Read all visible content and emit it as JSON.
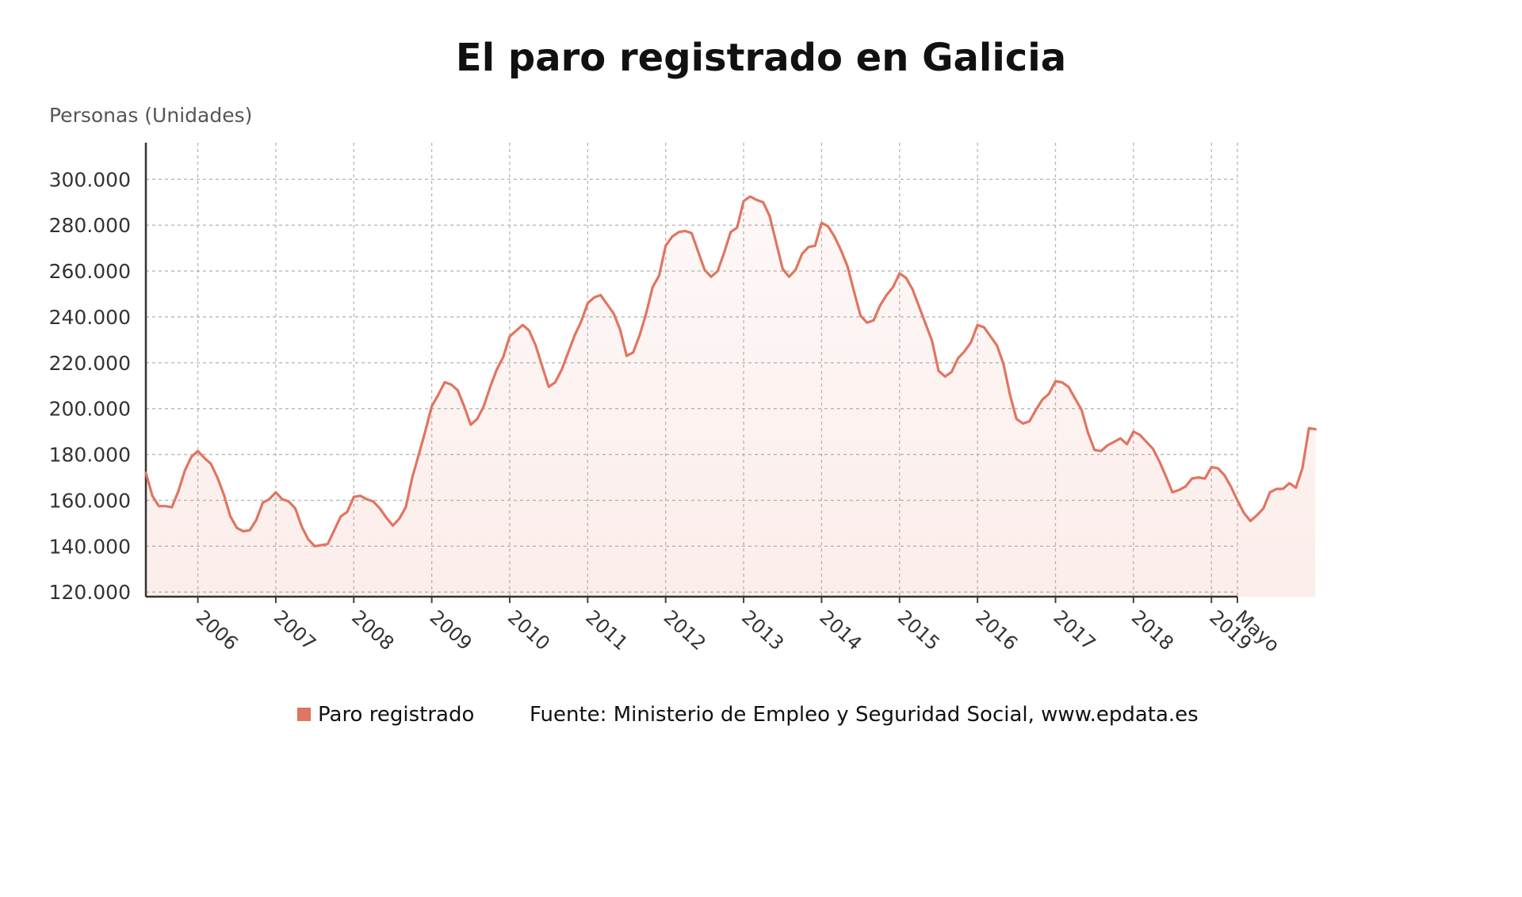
{
  "chart_data": {
    "type": "area",
    "title": "El paro registrado en Galicia",
    "ylabel": "Personas (Unidades)",
    "ylim": [
      118000,
      316000
    ],
    "yticks": [
      120000,
      140000,
      160000,
      180000,
      200000,
      220000,
      240000,
      260000,
      280000,
      300000
    ],
    "ytick_labels": [
      "120.000",
      "140.000",
      "160.000",
      "180.000",
      "200.000",
      "220.000",
      "240.000",
      "260.000",
      "280.000",
      "300.000"
    ],
    "x_start": "2005-05",
    "x_end": "2019-05",
    "xticks": [
      "2006-01",
      "2007-01",
      "2008-01",
      "2009-01",
      "2010-01",
      "2011-01",
      "2012-01",
      "2013-01",
      "2014-01",
      "2015-01",
      "2016-01",
      "2017-01",
      "2018-01",
      "2019-01",
      "2019-05"
    ],
    "xtick_labels": [
      "2006",
      "2007",
      "2008",
      "2009",
      "2010",
      "2011",
      "2012",
      "2013",
      "2014",
      "2015",
      "2016",
      "2017",
      "2018",
      "2019",
      "Mayo"
    ],
    "grid": true,
    "series": [
      {
        "name": "Paro registrado",
        "color": "#e07560",
        "start": "2005-05",
        "frequency": "monthly",
        "values": [
          172000,
          162000,
          157500,
          157500,
          157000,
          164000,
          173000,
          179000,
          181500,
          178500,
          176000,
          170000,
          162500,
          153000,
          148000,
          146500,
          147000,
          151500,
          159000,
          160500,
          163500,
          160500,
          159500,
          156500,
          148500,
          143000,
          140000,
          140500,
          141000,
          147000,
          153000,
          155000,
          161500,
          162000,
          160500,
          159500,
          156500,
          152500,
          149000,
          152000,
          157000,
          170000,
          180000,
          190000,
          201000,
          206000,
          211500,
          210500,
          208000,
          201000,
          193000,
          195500,
          201000,
          209500,
          217000,
          222500,
          231500,
          234000,
          236500,
          234000,
          227500,
          218500,
          209500,
          211500,
          217000,
          224500,
          232000,
          238000,
          246000,
          248500,
          249500,
          245500,
          241500,
          234500,
          223000,
          224500,
          232000,
          241500,
          253000,
          258000,
          271000,
          275000,
          277000,
          277500,
          276500,
          268500,
          260500,
          257500,
          260000,
          268000,
          277000,
          279000,
          290500,
          292500,
          291000,
          290000,
          284000,
          272500,
          261000,
          257500,
          260500,
          267500,
          270500,
          271000,
          281000,
          279500,
          275000,
          269000,
          262000,
          251000,
          240500,
          237500,
          238500,
          245000,
          249500,
          253000,
          259000,
          257000,
          252000,
          244500,
          237000,
          229500,
          216500,
          214000,
          216000,
          222000,
          225000,
          229000,
          236500,
          235500,
          231500,
          227500,
          219500,
          206000,
          195500,
          193500,
          194500,
          199500,
          204000,
          206500,
          212000,
          211500,
          209500,
          204500,
          199500,
          189500,
          182000,
          181500,
          184000,
          185500,
          187000,
          184500,
          190000,
          188500,
          185500,
          182500,
          177000,
          170500,
          163500,
          164500,
          166000,
          169500,
          170000,
          169500,
          174500,
          174000,
          171000,
          166000,
          160000,
          154500,
          151000,
          153500,
          156500,
          163500,
          165000,
          165000,
          167500,
          165500,
          174000,
          191500,
          191000
        ]
      }
    ],
    "legend": {
      "position": "bottom",
      "label": "Paro registrado",
      "source": "Fuente: Ministerio de Empleo y Seguridad Social, www.epdata.es"
    }
  }
}
